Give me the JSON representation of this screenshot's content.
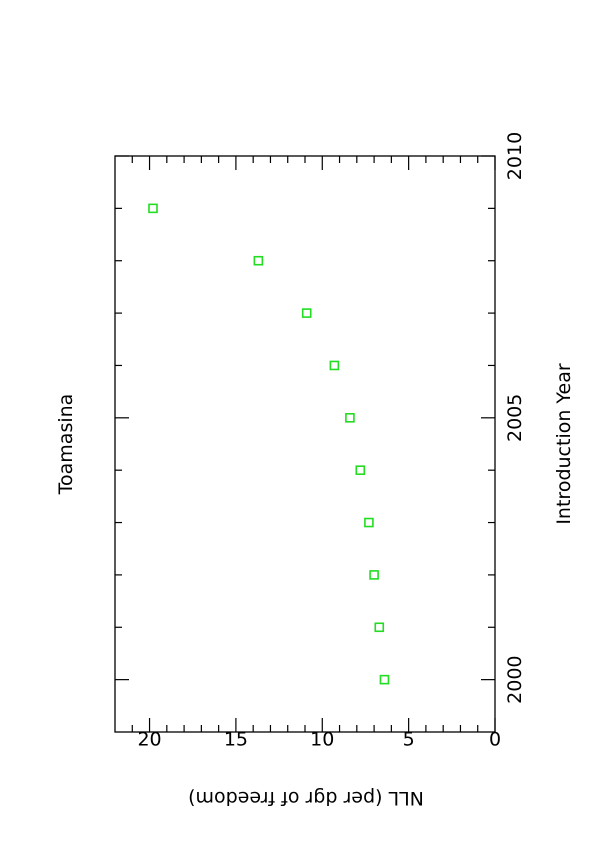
{
  "chart_data": {
    "type": "scatter",
    "title": "Toamasina",
    "xlabel": "Introduction Year",
    "ylabel": "NLL (per dgr of freedom)",
    "xlim": [
      1999,
      2010
    ],
    "ylim": [
      0,
      22
    ],
    "x_major_ticks": [
      2000,
      2005,
      2010
    ],
    "x_minor_ticks": [
      2001,
      2002,
      2003,
      2004,
      2006,
      2007,
      2008,
      2009
    ],
    "y_major_ticks": [
      0,
      5,
      10,
      15,
      20
    ],
    "x_tick_labels": [
      "2000",
      "2005",
      "2010"
    ],
    "y_tick_labels": [
      "0",
      "5",
      "10",
      "15",
      "20"
    ],
    "grid": false,
    "orientation": "rotated 90 degrees counter-clockwise",
    "marker": "open square",
    "marker_color": "#22dd22",
    "series": [
      {
        "x": [
          2000,
          2001,
          2002,
          2003,
          2004,
          2005,
          2006,
          2007,
          2008,
          2009
        ],
        "y": [
          6.4,
          6.7,
          7.0,
          7.3,
          7.8,
          8.4,
          9.3,
          10.9,
          13.7,
          19.8
        ]
      }
    ]
  }
}
